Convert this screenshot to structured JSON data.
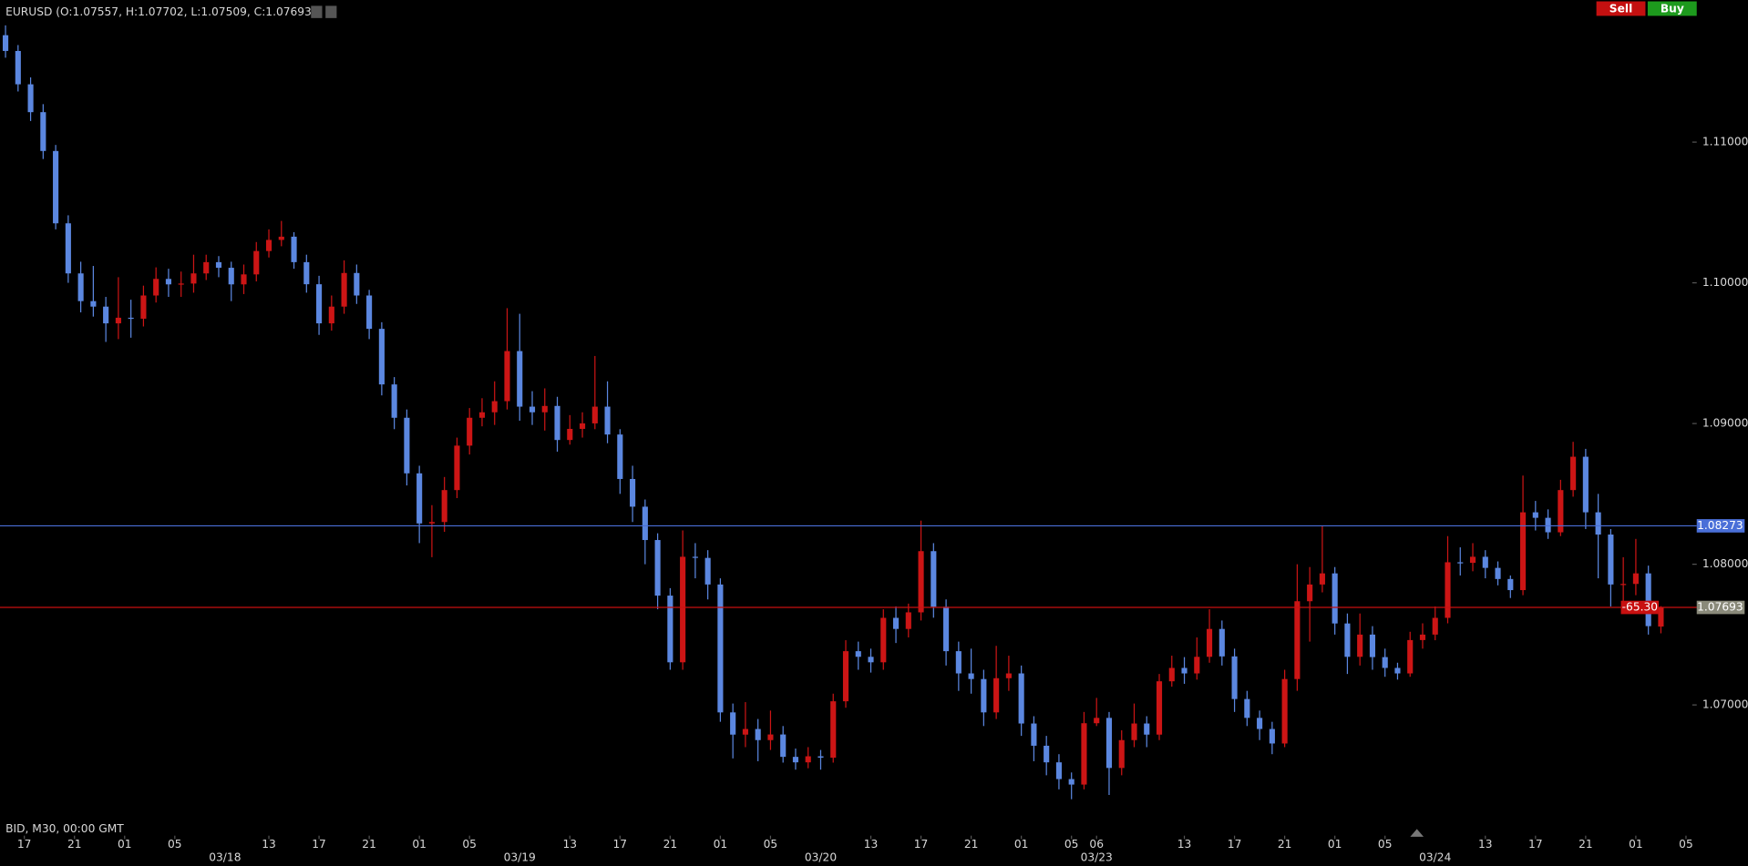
{
  "chart_data": {
    "type": "candlestick",
    "title": "EURUSD (O:1.07557, H:1.07702, L:1.07509, C:1.07693)",
    "footer": "BID, M30, 00:00 GMT",
    "buttons": [
      "Sell",
      "Buy"
    ],
    "up_color": "#cc1515",
    "down_color": "#5b87e0",
    "xlim": [
      -0.44,
      134.5
    ],
    "ylim": [
      1.0615,
      1.1185
    ],
    "yticks": [
      {
        "value": 1.07,
        "label": "1.07000"
      },
      {
        "value": 1.08,
        "label": "1.08000"
      },
      {
        "value": 1.09,
        "label": "1.09000"
      },
      {
        "value": 1.1,
        "label": "1.10000"
      },
      {
        "value": 1.11,
        "label": "1.11000"
      }
    ],
    "xticks": [
      {
        "value": 1.5,
        "label": "17"
      },
      {
        "value": 5.5,
        "label": "21"
      },
      {
        "value": 9.5,
        "label": "01"
      },
      {
        "value": 13.5,
        "label": "05"
      },
      {
        "value": 21,
        "label": "13"
      },
      {
        "value": 25,
        "label": "17"
      },
      {
        "value": 29,
        "label": "21"
      },
      {
        "value": 33,
        "label": "01"
      },
      {
        "value": 37,
        "label": "05"
      },
      {
        "value": 45,
        "label": "13"
      },
      {
        "value": 49,
        "label": "17"
      },
      {
        "value": 53,
        "label": "21"
      },
      {
        "value": 57,
        "label": "01"
      },
      {
        "value": 61,
        "label": "05"
      },
      {
        "value": 69,
        "label": "13"
      },
      {
        "value": 73,
        "label": "17"
      },
      {
        "value": 77,
        "label": "21"
      },
      {
        "value": 81,
        "label": "01"
      },
      {
        "value": 85,
        "label": "05"
      },
      {
        "value": 87,
        "label": "06"
      },
      {
        "value": 94,
        "label": "13"
      },
      {
        "value": 98,
        "label": "17"
      },
      {
        "value": 102,
        "label": "21"
      },
      {
        "value": 106,
        "label": "01"
      },
      {
        "value": 110,
        "label": "05"
      },
      {
        "value": 118,
        "label": "13"
      },
      {
        "value": 122,
        "label": "17"
      },
      {
        "value": 126,
        "label": "21"
      },
      {
        "value": 130,
        "label": "01"
      },
      {
        "value": 134,
        "label": "05"
      }
    ],
    "date_ticks": [
      {
        "value": 17.5,
        "label": "03/18"
      },
      {
        "value": 41,
        "label": "03/19"
      },
      {
        "value": 65,
        "label": "03/20"
      },
      {
        "value": 87,
        "label": "03/23"
      },
      {
        "value": 114,
        "label": "03/24"
      }
    ],
    "price_lines": [
      {
        "value": 1.08273,
        "color": "#4a6fd8",
        "box": "#4a6fd8"
      },
      {
        "value": 1.07693,
        "color": "#c81010",
        "box": "#8a8a7a"
      }
    ],
    "pnl": {
      "value": -65.3,
      "label": "-65.30"
    },
    "ohlc": [
      [
        1.1176,
        1.1183,
        1.116,
        1.11648
      ],
      [
        1.11648,
        1.1169,
        1.1136,
        1.11411
      ],
      [
        1.11411,
        1.1146,
        1.1115,
        1.11213
      ],
      [
        1.11213,
        1.1127,
        1.1088,
        1.10937
      ],
      [
        1.10937,
        1.1098,
        1.1038,
        1.10423
      ],
      [
        1.10423,
        1.1048,
        1.1,
        1.10067
      ],
      [
        1.10067,
        1.1015,
        1.0979,
        1.0987
      ],
      [
        1.0987,
        1.1012,
        1.0976,
        1.09831
      ],
      [
        1.09831,
        1.099,
        1.0958,
        1.09712
      ],
      [
        1.09712,
        1.1004,
        1.096,
        1.09752
      ],
      [
        1.09752,
        1.0988,
        1.0961,
        1.09745
      ],
      [
        1.09745,
        1.0998,
        1.0969,
        1.0991
      ],
      [
        1.0991,
        1.1011,
        1.0986,
        1.10028
      ],
      [
        1.10028,
        1.101,
        1.099,
        1.09989
      ],
      [
        1.09989,
        1.1008,
        1.099,
        1.09995
      ],
      [
        1.09995,
        1.102,
        1.0993,
        1.10067
      ],
      [
        1.10067,
        1.102,
        1.1002,
        1.10147
      ],
      [
        1.10147,
        1.1019,
        1.1004,
        1.10107
      ],
      [
        1.10107,
        1.1015,
        1.0987,
        1.09989
      ],
      [
        1.09989,
        1.1013,
        1.0992,
        1.1006
      ],
      [
        1.1006,
        1.1029,
        1.1001,
        1.10226
      ],
      [
        1.10226,
        1.1038,
        1.1018,
        1.10305
      ],
      [
        1.10305,
        1.1044,
        1.1026,
        1.10328
      ],
      [
        1.10328,
        1.1036,
        1.101,
        1.10147
      ],
      [
        1.10147,
        1.102,
        1.0993,
        1.0999
      ],
      [
        1.0999,
        1.1005,
        1.0963,
        1.09712
      ],
      [
        1.09712,
        1.0991,
        1.0966,
        1.09831
      ],
      [
        1.09831,
        1.1016,
        1.0978,
        1.1007
      ],
      [
        1.1007,
        1.1013,
        1.0985,
        1.0991
      ],
      [
        1.0991,
        1.0995,
        1.096,
        1.09673
      ],
      [
        1.09673,
        1.0972,
        1.092,
        1.09278
      ],
      [
        1.09278,
        1.0933,
        1.0896,
        1.09041
      ],
      [
        1.09041,
        1.091,
        1.0856,
        1.08646
      ],
      [
        1.08646,
        1.087,
        1.0815,
        1.0829
      ],
      [
        1.0829,
        1.0842,
        1.0805,
        1.083
      ],
      [
        1.083,
        1.0862,
        1.0823,
        1.08527
      ],
      [
        1.08527,
        1.089,
        1.0847,
        1.08843
      ],
      [
        1.08843,
        1.0911,
        1.0878,
        1.09041
      ],
      [
        1.09041,
        1.0918,
        1.0898,
        1.0908
      ],
      [
        1.0908,
        1.093,
        1.0899,
        1.09159
      ],
      [
        1.09159,
        1.0982,
        1.091,
        1.09515
      ],
      [
        1.09515,
        1.0978,
        1.0902,
        1.0912
      ],
      [
        1.0912,
        1.0923,
        1.0899,
        1.0908
      ],
      [
        1.0908,
        1.0925,
        1.0895,
        1.09125
      ],
      [
        1.09125,
        1.0919,
        1.088,
        1.08883
      ],
      [
        1.08883,
        1.0906,
        1.0885,
        1.08962
      ],
      [
        1.08962,
        1.0908,
        1.089,
        1.09001
      ],
      [
        1.09001,
        1.0948,
        1.0896,
        1.0912
      ],
      [
        1.0912,
        1.093,
        1.0886,
        1.08922
      ],
      [
        1.08922,
        1.0896,
        1.085,
        1.08606
      ],
      [
        1.08606,
        1.087,
        1.083,
        1.08409
      ],
      [
        1.08409,
        1.0846,
        1.08,
        1.08172
      ],
      [
        1.08172,
        1.0822,
        1.0768,
        1.07777
      ],
      [
        1.07777,
        1.0783,
        1.0725,
        1.07303
      ],
      [
        1.07303,
        1.0824,
        1.0725,
        1.08053
      ],
      [
        1.08053,
        1.0815,
        1.079,
        1.08045
      ],
      [
        1.08045,
        1.081,
        1.0775,
        1.07856
      ],
      [
        1.07856,
        1.079,
        1.0688,
        1.06947
      ],
      [
        1.06947,
        1.0701,
        1.0662,
        1.06789
      ],
      [
        1.06789,
        1.0702,
        1.067,
        1.06829
      ],
      [
        1.06829,
        1.069,
        1.066,
        1.0675
      ],
      [
        1.0675,
        1.0696,
        1.0668,
        1.0679
      ],
      [
        1.0679,
        1.0685,
        1.0659,
        1.06631
      ],
      [
        1.06631,
        1.0669,
        1.0654,
        1.06592
      ],
      [
        1.06592,
        1.067,
        1.0655,
        1.06635
      ],
      [
        1.06635,
        1.0668,
        1.0654,
        1.06625
      ],
      [
        1.06625,
        1.0708,
        1.0659,
        1.07026
      ],
      [
        1.07026,
        1.0746,
        1.0698,
        1.07382
      ],
      [
        1.07382,
        1.0745,
        1.0725,
        1.07342
      ],
      [
        1.07342,
        1.074,
        1.0723,
        1.07303
      ],
      [
        1.07303,
        1.0768,
        1.0725,
        1.07619
      ],
      [
        1.07619,
        1.077,
        1.0744,
        1.0754
      ],
      [
        1.0754,
        1.0772,
        1.0748,
        1.07658
      ],
      [
        1.07658,
        1.0831,
        1.076,
        1.08093
      ],
      [
        1.08093,
        1.0815,
        1.0762,
        1.07698
      ],
      [
        1.07698,
        1.0775,
        1.0728,
        1.07382
      ],
      [
        1.07382,
        1.0745,
        1.071,
        1.07224
      ],
      [
        1.07224,
        1.074,
        1.0708,
        1.07184
      ],
      [
        1.07184,
        1.0725,
        1.0685,
        1.06947
      ],
      [
        1.06947,
        1.0742,
        1.069,
        1.0719
      ],
      [
        1.0719,
        1.0735,
        1.071,
        1.07224
      ],
      [
        1.07224,
        1.0728,
        1.0678,
        1.06868
      ],
      [
        1.06868,
        1.0692,
        1.066,
        1.0671
      ],
      [
        1.0671,
        1.0678,
        1.065,
        1.06592
      ],
      [
        1.06592,
        1.0665,
        1.064,
        1.06473
      ],
      [
        1.06473,
        1.0652,
        1.0633,
        1.06434
      ],
      [
        1.06434,
        1.0695,
        1.064,
        1.0687
      ],
      [
        1.0687,
        1.0705,
        1.0685,
        1.06908
      ],
      [
        1.06908,
        1.0695,
        1.0636,
        1.06552
      ],
      [
        1.06552,
        1.0682,
        1.065,
        1.0675
      ],
      [
        1.0675,
        1.0701,
        1.067,
        1.06868
      ],
      [
        1.06868,
        1.0692,
        1.067,
        1.06789
      ],
      [
        1.06789,
        1.0722,
        1.0675,
        1.07168
      ],
      [
        1.07168,
        1.0735,
        1.0713,
        1.07263
      ],
      [
        1.07263,
        1.0734,
        1.0715,
        1.07224
      ],
      [
        1.07224,
        1.0748,
        1.0718,
        1.07342
      ],
      [
        1.07342,
        1.0768,
        1.073,
        1.0754
      ],
      [
        1.0754,
        1.076,
        1.0728,
        1.07345
      ],
      [
        1.07345,
        1.074,
        1.0695,
        1.07042
      ],
      [
        1.07042,
        1.071,
        1.0685,
        1.06908
      ],
      [
        1.06908,
        1.0696,
        1.0675,
        1.06829
      ],
      [
        1.06829,
        1.0688,
        1.0665,
        1.06726
      ],
      [
        1.06726,
        1.0725,
        1.067,
        1.07184
      ],
      [
        1.07184,
        1.08,
        1.071,
        1.07737
      ],
      [
        1.07737,
        1.0798,
        1.0745,
        1.07856
      ],
      [
        1.07856,
        1.0827,
        1.078,
        1.07935
      ],
      [
        1.07935,
        1.0798,
        1.075,
        1.07579
      ],
      [
        1.07579,
        1.0765,
        1.0722,
        1.07342
      ],
      [
        1.07342,
        1.0765,
        1.0728,
        1.075
      ],
      [
        1.075,
        1.0756,
        1.0725,
        1.0734
      ],
      [
        1.0734,
        1.074,
        1.072,
        1.07263
      ],
      [
        1.07263,
        1.073,
        1.0718,
        1.07224
      ],
      [
        1.07224,
        1.0752,
        1.072,
        1.07461
      ],
      [
        1.07461,
        1.0758,
        1.074,
        1.075
      ],
      [
        1.075,
        1.077,
        1.0746,
        1.07619
      ],
      [
        1.07619,
        1.082,
        1.0758,
        1.08014
      ],
      [
        1.08014,
        1.0812,
        1.0792,
        1.0801
      ],
      [
        1.0801,
        1.0815,
        1.0795,
        1.08053
      ],
      [
        1.08053,
        1.081,
        1.079,
        1.07974
      ],
      [
        1.07974,
        1.0802,
        1.0785,
        1.07895
      ],
      [
        1.07895,
        1.0792,
        1.0776,
        1.07816
      ],
      [
        1.07816,
        1.0863,
        1.0778,
        1.08369
      ],
      [
        1.08369,
        1.0845,
        1.0824,
        1.0833
      ],
      [
        1.0833,
        1.0839,
        1.0818,
        1.08227
      ],
      [
        1.08227,
        1.086,
        1.082,
        1.08527
      ],
      [
        1.08527,
        1.0887,
        1.0848,
        1.08764
      ],
      [
        1.08764,
        1.0882,
        1.0825,
        1.08369
      ],
      [
        1.08369,
        1.085,
        1.079,
        1.08211
      ],
      [
        1.08211,
        1.0825,
        1.077,
        1.07856
      ],
      [
        1.07856,
        1.0805,
        1.0772,
        1.0786
      ],
      [
        1.0786,
        1.0818,
        1.0778,
        1.07935
      ],
      [
        1.07935,
        1.0799,
        1.075,
        1.0756
      ],
      [
        1.07557,
        1.07702,
        1.07509,
        1.07693
      ]
    ]
  }
}
